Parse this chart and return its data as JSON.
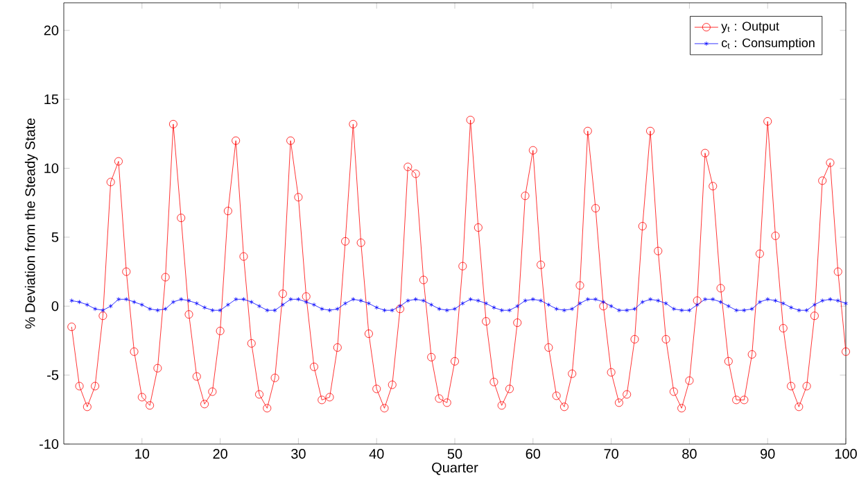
{
  "chart_data": {
    "type": "line",
    "xlabel": "Quarter",
    "ylabel": "% Deviation from the Steady State",
    "x": [
      1,
      2,
      3,
      4,
      5,
      6,
      7,
      8,
      9,
      10,
      11,
      12,
      13,
      14,
      15,
      16,
      17,
      18,
      19,
      20,
      21,
      22,
      23,
      24,
      25,
      26,
      27,
      28,
      29,
      30,
      31,
      32,
      33,
      34,
      35,
      36,
      37,
      38,
      39,
      40,
      41,
      42,
      43,
      44,
      45,
      46,
      47,
      48,
      49,
      50,
      51,
      52,
      53,
      54,
      55,
      56,
      57,
      58,
      59,
      60,
      61,
      62,
      63,
      64,
      65,
      66,
      67,
      68,
      69,
      70,
      71,
      72,
      73,
      74,
      75,
      76,
      77,
      78,
      79,
      80,
      81,
      82,
      83,
      84,
      85,
      86,
      87,
      88,
      89,
      90,
      91,
      92,
      93,
      94,
      95,
      96,
      97,
      98,
      99,
      100
    ],
    "series": [
      {
        "name": "y$_{t}$ : Output",
        "color": "#ff0000",
        "marker": "circle",
        "values": [
          -1.5,
          -5.8,
          -7.3,
          -5.8,
          -0.7,
          9.0,
          10.5,
          2.5,
          -3.3,
          -6.6,
          -7.2,
          -4.5,
          2.1,
          13.2,
          6.4,
          -0.6,
          -5.1,
          -7.1,
          -6.2,
          -1.8,
          6.9,
          12.0,
          3.6,
          -2.7,
          -6.4,
          -7.4,
          -5.2,
          0.9,
          12.0,
          7.9,
          0.7,
          -4.4,
          -6.8,
          -6.6,
          -3.0,
          4.7,
          13.2,
          4.6,
          -2.0,
          -6.0,
          -7.4,
          -5.7,
          -0.2,
          10.1,
          9.6,
          1.9,
          -3.7,
          -6.7,
          -7.0,
          -4.0,
          2.9,
          13.5,
          5.7,
          -1.1,
          -5.5,
          -7.2,
          -6.0,
          -1.2,
          8.0,
          11.3,
          3.0,
          -3.0,
          -6.5,
          -7.3,
          -4.9,
          1.5,
          12.7,
          7.1,
          0.0,
          -4.8,
          -7.0,
          -6.4,
          -2.4,
          5.8,
          12.7,
          4.0,
          -2.4,
          -6.2,
          -7.4,
          -5.4,
          0.4,
          11.1,
          8.7,
          1.3,
          -4.0,
          -6.8,
          -6.8,
          -3.5,
          3.8,
          13.4,
          5.1,
          -1.6,
          -5.8,
          -7.3,
          -5.8,
          -0.7,
          9.1,
          10.4,
          2.5,
          -3.3
        ]
      },
      {
        "name": "c$_{t}$ : Consumption",
        "color": "#0000ff",
        "marker": "cross",
        "values": [
          0.4,
          0.3,
          0.1,
          -0.2,
          -0.3,
          0.0,
          0.5,
          0.5,
          0.3,
          0.1,
          -0.2,
          -0.3,
          -0.2,
          0.3,
          0.5,
          0.4,
          0.2,
          -0.1,
          -0.3,
          -0.3,
          0.1,
          0.5,
          0.5,
          0.3,
          0.0,
          -0.3,
          -0.3,
          0.1,
          0.5,
          0.5,
          0.3,
          0.1,
          -0.2,
          -0.3,
          -0.2,
          0.2,
          0.5,
          0.4,
          0.2,
          -0.1,
          -0.3,
          -0.3,
          0.0,
          0.4,
          0.5,
          0.4,
          0.1,
          -0.2,
          -0.3,
          -0.2,
          0.2,
          0.5,
          0.4,
          0.2,
          -0.1,
          -0.3,
          -0.3,
          0.0,
          0.4,
          0.5,
          0.4,
          0.1,
          -0.2,
          -0.3,
          -0.2,
          0.2,
          0.5,
          0.5,
          0.3,
          0.0,
          -0.3,
          -0.3,
          -0.2,
          0.3,
          0.5,
          0.4,
          0.2,
          -0.2,
          -0.3,
          -0.3,
          0.1,
          0.5,
          0.5,
          0.3,
          0.0,
          -0.3,
          -0.3,
          -0.2,
          0.3,
          0.5,
          0.4,
          0.2,
          -0.1,
          -0.3,
          -0.3,
          0.1,
          0.4,
          0.5,
          0.4,
          0.2
        ]
      }
    ],
    "xlim": [
      0,
      100
    ],
    "ylim": [
      -10,
      22
    ],
    "xticks": [
      10,
      20,
      30,
      40,
      50,
      60,
      70,
      80,
      90,
      100
    ],
    "yticks": [
      -10,
      -5,
      0,
      5,
      10,
      15,
      20
    ],
    "legend": "top right",
    "grid": false,
    "line_style": "solid"
  }
}
